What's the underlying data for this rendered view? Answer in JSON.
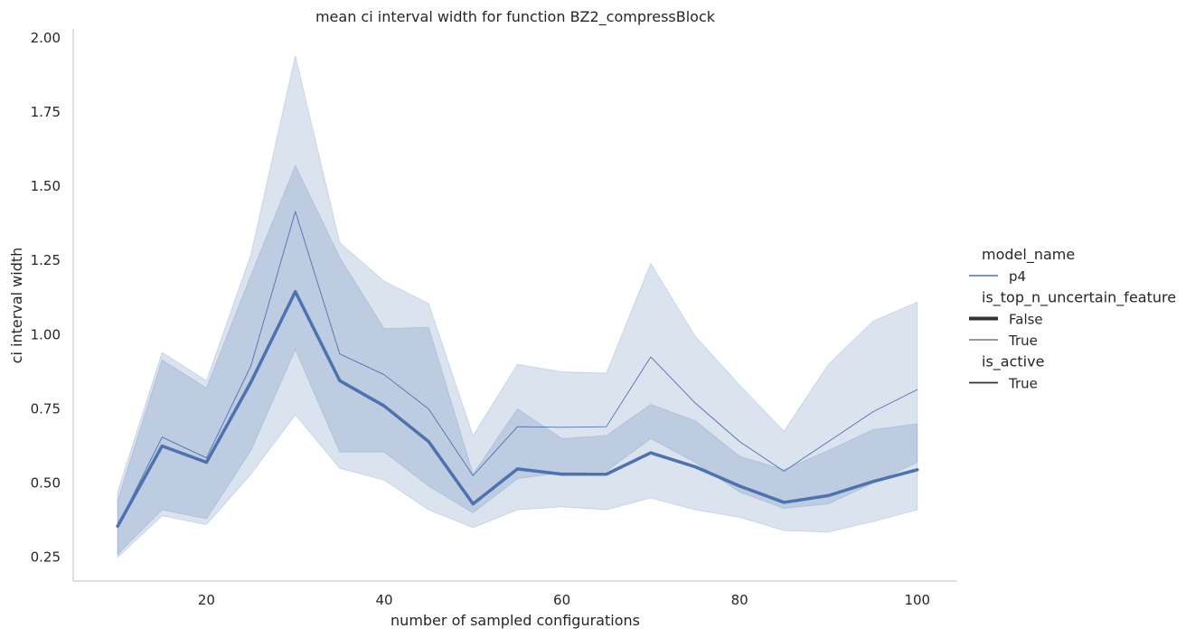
{
  "chart_data": {
    "type": "line",
    "title": "mean ci interval width for function BZ2_compressBlock",
    "xlabel": "number of sampled configurations",
    "ylabel": "ci interval width",
    "xlim": [
      5,
      104.5
    ],
    "ylim": [
      0.17,
      2.03
    ],
    "xticks": [
      20,
      40,
      60,
      80,
      100
    ],
    "yticks": [
      0.25,
      0.5,
      0.75,
      1.0,
      1.25,
      1.5,
      1.75,
      2.0
    ],
    "ytick_labels": [
      "0.25",
      "0.50",
      "0.75",
      "1.00",
      "1.25",
      "1.50",
      "1.75",
      "2.00"
    ],
    "grid": false,
    "color": "#4c72b0",
    "x": [
      10,
      15,
      20,
      25,
      30,
      35,
      40,
      45,
      50,
      55,
      60,
      65,
      70,
      75,
      80,
      85,
      90,
      95,
      100
    ],
    "series": [
      {
        "label": "False",
        "line_width": 3.5,
        "values": [
          0.355,
          0.625,
          0.57,
          0.84,
          1.145,
          0.845,
          0.76,
          0.64,
          0.43,
          0.548,
          0.53,
          0.53,
          0.602,
          0.555,
          0.49,
          0.435,
          0.458,
          0.505,
          0.545
        ],
        "ci_lower": [
          0.25,
          0.39,
          0.36,
          0.53,
          0.73,
          0.55,
          0.51,
          0.41,
          0.35,
          0.41,
          0.42,
          0.41,
          0.45,
          0.41,
          0.385,
          0.34,
          0.335,
          0.37,
          0.41
        ],
        "ci_upper": [
          0.44,
          0.915,
          0.82,
          1.2,
          1.57,
          1.26,
          1.02,
          1.025,
          0.53,
          0.75,
          0.65,
          0.66,
          0.765,
          0.71,
          0.59,
          0.545,
          0.61,
          0.68,
          0.7
        ]
      },
      {
        "label": "True",
        "line_width": 0.9,
        "values": [
          0.355,
          0.655,
          0.585,
          0.895,
          1.415,
          0.935,
          0.865,
          0.75,
          0.525,
          0.69,
          0.688,
          0.69,
          0.925,
          0.77,
          0.64,
          0.54,
          0.64,
          0.74,
          0.815
        ],
        "ci_lower": [
          0.26,
          0.41,
          0.38,
          0.61,
          0.95,
          0.605,
          0.605,
          0.49,
          0.4,
          0.515,
          0.535,
          0.54,
          0.65,
          0.57,
          0.47,
          0.415,
          0.43,
          0.5,
          0.57
        ],
        "ci_upper": [
          0.47,
          0.94,
          0.845,
          1.27,
          1.94,
          1.31,
          1.18,
          1.105,
          0.66,
          0.9,
          0.875,
          0.87,
          1.24,
          0.995,
          0.83,
          0.675,
          0.9,
          1.045,
          1.11
        ]
      }
    ],
    "legend": {
      "placement": "right",
      "groups": [
        {
          "title": "model_name",
          "entries": [
            {
              "label": "p4",
              "style": "color"
            }
          ]
        },
        {
          "title": "is_top_n_uncertain_feature",
          "entries": [
            {
              "label": "False",
              "style": "thick"
            },
            {
              "label": "True",
              "style": "thin"
            }
          ]
        },
        {
          "title": "is_active",
          "entries": [
            {
              "label": "True",
              "style": "solid"
            }
          ]
        }
      ]
    }
  }
}
